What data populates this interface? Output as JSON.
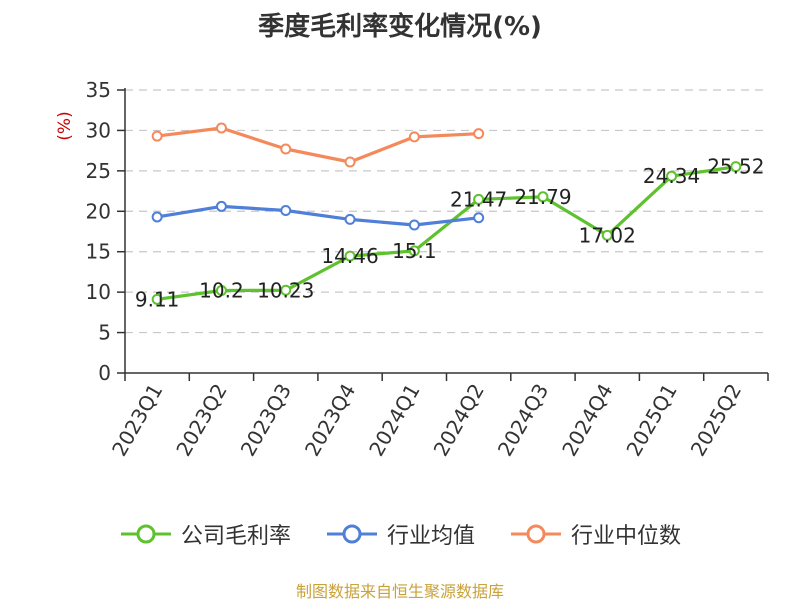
{
  "chart_data": {
    "type": "line",
    "title": "季度毛利率变化情况(%)",
    "ylabel": "(%)",
    "xlabel": "",
    "categories": [
      "2023Q1",
      "2023Q2",
      "2023Q3",
      "2023Q4",
      "2024Q1",
      "2024Q2",
      "2024Q3",
      "2024Q4",
      "2025Q1",
      "2025Q2"
    ],
    "ylim": [
      0,
      35
    ],
    "yticks": [
      0,
      5,
      10,
      15,
      20,
      25,
      30,
      35
    ],
    "grid": "horizontal dashed",
    "legend_position": "bottom",
    "series": [
      {
        "name": "公司毛利率",
        "color": "#5dc22e",
        "labels": true,
        "values": [
          9.11,
          10.2,
          10.23,
          14.46,
          15.1,
          21.47,
          21.79,
          17.02,
          24.34,
          25.52
        ]
      },
      {
        "name": "行业均值",
        "color": "#4f7fd6",
        "labels": false,
        "values": [
          19.3,
          20.6,
          20.1,
          19.0,
          18.3,
          19.2,
          null,
          null,
          null,
          null
        ]
      },
      {
        "name": "行业中位数",
        "color": "#f48a5c",
        "labels": false,
        "values": [
          29.3,
          30.3,
          27.7,
          26.1,
          29.2,
          29.6,
          null,
          null,
          null,
          null
        ]
      }
    ]
  },
  "source_text": "制图数据来自恒生聚源数据库"
}
